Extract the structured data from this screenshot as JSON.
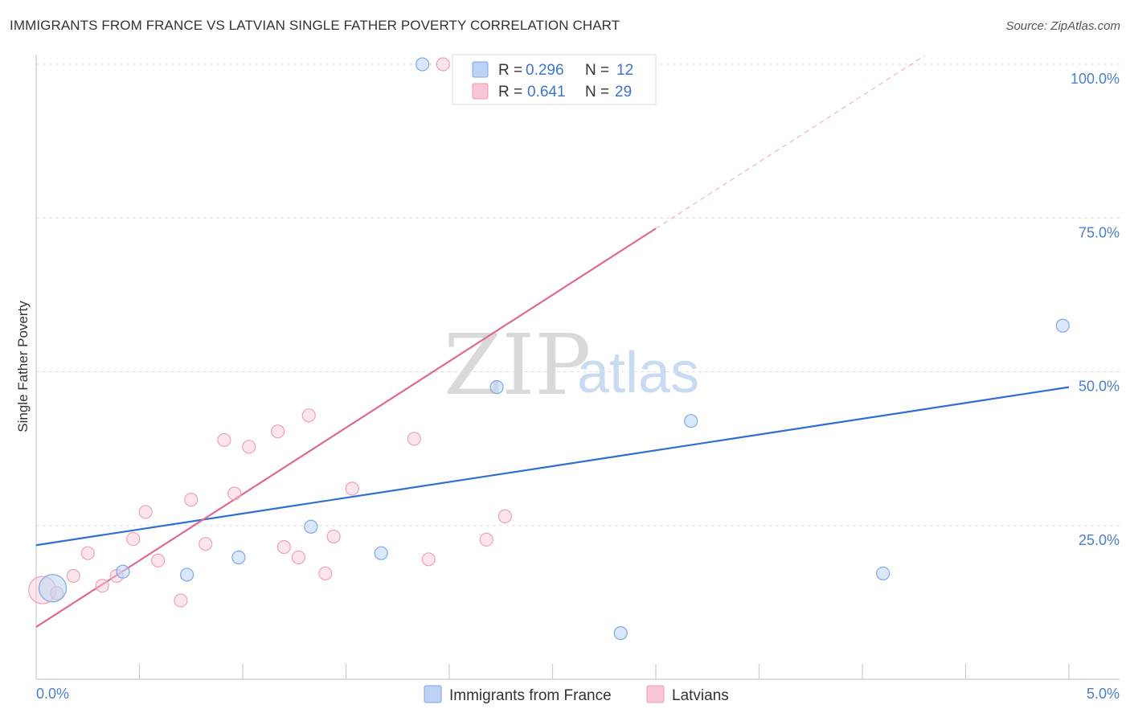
{
  "header": {
    "title": "IMMIGRANTS FROM FRANCE VS LATVIAN SINGLE FATHER POVERTY CORRELATION CHART",
    "source": "Source: ZipAtlas.com"
  },
  "watermark": {
    "zip": "ZIP",
    "atlas": "atlas"
  },
  "chart_data": {
    "type": "scatter",
    "ylabel": "Single Father Poverty",
    "xlim": [
      0,
      5
    ],
    "ylim": [
      0,
      103
    ],
    "x_tick_labels": [
      "0.0%",
      "5.0%"
    ],
    "y_ticks": [
      25,
      50,
      75,
      100
    ],
    "y_tick_labels": [
      "25.0%",
      "50.0%",
      "75.0%",
      "100.0%"
    ],
    "grid": true,
    "legend_position": "top-center",
    "series": [
      {
        "name": "Immigrants from France",
        "color": "#8db4ea",
        "line_color": "#2f6fd1",
        "R": "0.296",
        "N": "12",
        "points": [
          [
            0.08,
            14.8,
            "large"
          ],
          [
            0.42,
            17.5
          ],
          [
            0.73,
            17.0
          ],
          [
            0.98,
            19.8
          ],
          [
            1.33,
            24.8
          ],
          [
            1.67,
            20.5
          ],
          [
            1.87,
            100
          ],
          [
            2.23,
            47.5
          ],
          [
            2.83,
            7.5
          ],
          [
            3.17,
            42.0
          ],
          [
            4.1,
            17.2
          ],
          [
            4.97,
            57.5
          ]
        ],
        "trend": {
          "x0": 0,
          "y0": 21.8,
          "x1": 5,
          "y1": 47.5,
          "x_dash_end": 5
        }
      },
      {
        "name": "Latvians",
        "color": "#f2a6bf",
        "line_color": "#e0698f",
        "R": "0.641",
        "N": "29",
        "points": [
          [
            0.03,
            14.5,
            "large"
          ],
          [
            0.1,
            14.0
          ],
          [
            0.18,
            16.8
          ],
          [
            0.25,
            20.5
          ],
          [
            0.32,
            15.2
          ],
          [
            0.39,
            16.8
          ],
          [
            0.47,
            22.8
          ],
          [
            0.53,
            27.2
          ],
          [
            0.59,
            19.3
          ],
          [
            0.7,
            12.8
          ],
          [
            0.75,
            29.2
          ],
          [
            0.82,
            22.0
          ],
          [
            0.91,
            38.9
          ],
          [
            0.96,
            30.2
          ],
          [
            1.03,
            37.8
          ],
          [
            1.17,
            40.3
          ],
          [
            1.2,
            21.5
          ],
          [
            1.27,
            19.8
          ],
          [
            1.32,
            42.9
          ],
          [
            1.4,
            17.2
          ],
          [
            1.44,
            23.2
          ],
          [
            1.53,
            31.0
          ],
          [
            1.83,
            39.1
          ],
          [
            1.9,
            19.5
          ],
          [
            1.97,
            100
          ],
          [
            2.18,
            22.7
          ],
          [
            2.27,
            26.5
          ],
          [
            2.47,
            100
          ],
          [
            2.67,
            100
          ]
        ],
        "trend": {
          "x0": 0,
          "y0": 8.5,
          "x1": 3.0,
          "y1": 73.3,
          "x_dash_end": 4.3
        }
      }
    ]
  }
}
